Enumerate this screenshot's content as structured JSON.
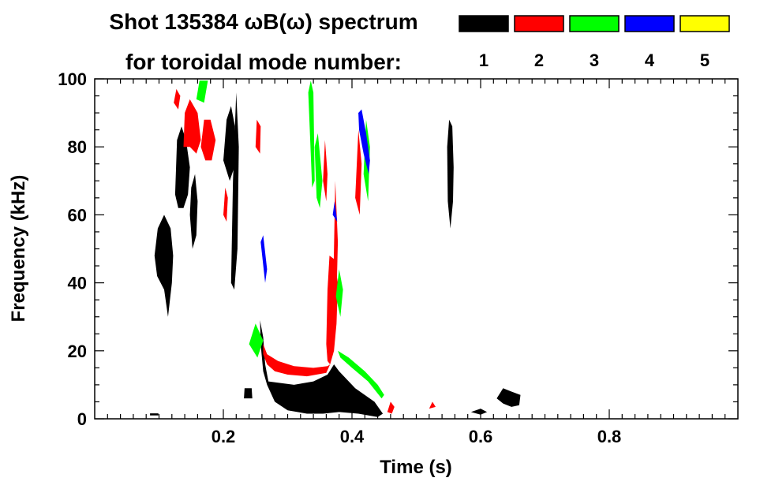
{
  "chart_data": {
    "type": "heatmap",
    "title_line1": "Shot 135384 ωB(ω) spectrum",
    "title_line2": "for toroidal mode number:",
    "xlabel": "Time (s)",
    "ylabel": "Frequency (kHz)",
    "xlim": [
      0.0,
      1.0
    ],
    "ylim": [
      0,
      100
    ],
    "x_ticks": [
      {
        "value": 0.2,
        "label": "0.2"
      },
      {
        "value": 0.4,
        "label": "0.4"
      },
      {
        "value": 0.6,
        "label": "0.6"
      },
      {
        "value": 0.8,
        "label": "0.8"
      }
    ],
    "y_ticks": [
      {
        "value": 0,
        "label": "0"
      },
      {
        "value": 20,
        "label": "20"
      },
      {
        "value": 40,
        "label": "40"
      },
      {
        "value": 60,
        "label": "60"
      },
      {
        "value": 80,
        "label": "80"
      },
      {
        "value": 100,
        "label": "100"
      }
    ],
    "legend": [
      {
        "label": "1",
        "color": "#000000"
      },
      {
        "label": "2",
        "color": "#ff0000"
      },
      {
        "label": "3",
        "color": "#00ff00"
      },
      {
        "label": "4",
        "color": "#0000ff"
      },
      {
        "label": "5",
        "color": "#ffff00"
      }
    ],
    "legend_position": "top-right",
    "regions": [
      {
        "n": "1",
        "points": [
          [
            0.093,
            48
          ],
          [
            0.098,
            56
          ],
          [
            0.108,
            60
          ],
          [
            0.118,
            56
          ],
          [
            0.122,
            48
          ],
          [
            0.12,
            40
          ],
          [
            0.114,
            30
          ],
          [
            0.108,
            38
          ],
          [
            0.097,
            42
          ]
        ]
      },
      {
        "n": "1",
        "points": [
          [
            0.125,
            66
          ],
          [
            0.128,
            82
          ],
          [
            0.135,
            86
          ],
          [
            0.142,
            82
          ],
          [
            0.148,
            74
          ],
          [
            0.145,
            66
          ],
          [
            0.138,
            62
          ],
          [
            0.13,
            62
          ]
        ]
      },
      {
        "n": "1",
        "points": [
          [
            0.148,
            60
          ],
          [
            0.15,
            68
          ],
          [
            0.156,
            72
          ],
          [
            0.16,
            64
          ],
          [
            0.158,
            54
          ],
          [
            0.152,
            50
          ]
        ]
      },
      {
        "n": "1",
        "points": [
          [
            0.2,
            76
          ],
          [
            0.205,
            88
          ],
          [
            0.212,
            92
          ],
          [
            0.218,
            86
          ],
          [
            0.217,
            74
          ],
          [
            0.21,
            70
          ]
        ]
      },
      {
        "n": "1",
        "points": [
          [
            0.212,
            40
          ],
          [
            0.215,
            70
          ],
          [
            0.22,
            96
          ],
          [
            0.224,
            80
          ],
          [
            0.222,
            50
          ],
          [
            0.217,
            38
          ]
        ]
      },
      {
        "n": "1",
        "points": [
          [
            0.086,
            1
          ],
          [
            0.086,
            1.6
          ],
          [
            0.099,
            1.6
          ],
          [
            0.099,
            1
          ]
        ]
      },
      {
        "n": "1",
        "points": [
          [
            0.232,
            6
          ],
          [
            0.233,
            9
          ],
          [
            0.244,
            9
          ],
          [
            0.245,
            6
          ]
        ]
      },
      {
        "n": "1",
        "points": [
          [
            0.27,
            11
          ],
          [
            0.31,
            10
          ],
          [
            0.34,
            11
          ],
          [
            0.362,
            13
          ],
          [
            0.372,
            16
          ],
          [
            0.38,
            14
          ],
          [
            0.405,
            9
          ],
          [
            0.435,
            5
          ],
          [
            0.448,
            1.5
          ],
          [
            0.44,
            0.5
          ],
          [
            0.41,
            1.5
          ],
          [
            0.38,
            2
          ],
          [
            0.355,
            1.5
          ],
          [
            0.33,
            1.5
          ],
          [
            0.3,
            2.5
          ],
          [
            0.28,
            5
          ],
          [
            0.268,
            10
          ],
          [
            0.262,
            14
          ],
          [
            0.258,
            22
          ],
          [
            0.257,
            29
          ],
          [
            0.262,
            24
          ],
          [
            0.265,
            16
          ]
        ]
      },
      {
        "n": "1",
        "points": [
          [
            0.548,
            80
          ],
          [
            0.551,
            88
          ],
          [
            0.556,
            86
          ],
          [
            0.558,
            74
          ],
          [
            0.557,
            64
          ],
          [
            0.553,
            56
          ],
          [
            0.549,
            64
          ]
        ]
      },
      {
        "n": "1",
        "points": [
          [
            0.625,
            6
          ],
          [
            0.635,
            9
          ],
          [
            0.648,
            8
          ],
          [
            0.662,
            7
          ],
          [
            0.66,
            4
          ],
          [
            0.648,
            3.5
          ],
          [
            0.635,
            4.5
          ]
        ]
      },
      {
        "n": "1",
        "points": [
          [
            0.585,
            2
          ],
          [
            0.6,
            3
          ],
          [
            0.61,
            2
          ],
          [
            0.6,
            1.2
          ]
        ]
      },
      {
        "n": "2",
        "points": [
          [
            0.138,
            80
          ],
          [
            0.14,
            90
          ],
          [
            0.148,
            94
          ],
          [
            0.16,
            90
          ],
          [
            0.165,
            82
          ],
          [
            0.158,
            78
          ],
          [
            0.148,
            80
          ]
        ]
      },
      {
        "n": "2",
        "points": [
          [
            0.165,
            80
          ],
          [
            0.17,
            88
          ],
          [
            0.18,
            88
          ],
          [
            0.188,
            82
          ],
          [
            0.182,
            76
          ],
          [
            0.172,
            76
          ]
        ]
      },
      {
        "n": "2",
        "points": [
          [
            0.123,
            93
          ],
          [
            0.127,
            97
          ],
          [
            0.133,
            95
          ],
          [
            0.13,
            91
          ]
        ]
      },
      {
        "n": "2",
        "points": [
          [
            0.2,
            60
          ],
          [
            0.203,
            68
          ],
          [
            0.207,
            65
          ],
          [
            0.205,
            58
          ]
        ]
      },
      {
        "n": "2",
        "points": [
          [
            0.25,
            80
          ],
          [
            0.252,
            88
          ],
          [
            0.258,
            86
          ],
          [
            0.257,
            78
          ]
        ]
      },
      {
        "n": "2",
        "points": [
          [
            0.262,
            22
          ],
          [
            0.268,
            19
          ],
          [
            0.285,
            17
          ],
          [
            0.31,
            15.5
          ],
          [
            0.34,
            15
          ],
          [
            0.362,
            15.5
          ],
          [
            0.366,
            16
          ],
          [
            0.36,
            13.5
          ],
          [
            0.33,
            12.5
          ],
          [
            0.3,
            13
          ],
          [
            0.28,
            14
          ],
          [
            0.268,
            16
          ],
          [
            0.262,
            19
          ]
        ]
      },
      {
        "n": "2",
        "points": [
          [
            0.36,
            22
          ],
          [
            0.362,
            38
          ],
          [
            0.365,
            48
          ],
          [
            0.372,
            47
          ],
          [
            0.378,
            40
          ],
          [
            0.376,
            28
          ],
          [
            0.372,
            20
          ],
          [
            0.366,
            16
          ],
          [
            0.362,
            17
          ]
        ]
      },
      {
        "n": "2",
        "points": [
          [
            0.355,
            70
          ],
          [
            0.358,
            82
          ],
          [
            0.362,
            72
          ],
          [
            0.36,
            64
          ]
        ]
      },
      {
        "n": "2",
        "points": [
          [
            0.37,
            30
          ],
          [
            0.374,
            70
          ],
          [
            0.378,
            52
          ],
          [
            0.376,
            36
          ]
        ]
      },
      {
        "n": "2",
        "points": [
          [
            0.405,
            65
          ],
          [
            0.41,
            85
          ],
          [
            0.415,
            75
          ],
          [
            0.412,
            60
          ]
        ]
      },
      {
        "n": "2",
        "points": [
          [
            0.455,
            2
          ],
          [
            0.46,
            5
          ],
          [
            0.466,
            3.5
          ],
          [
            0.462,
            1.5
          ]
        ]
      },
      {
        "n": "2",
        "points": [
          [
            0.52,
            3
          ],
          [
            0.525,
            5
          ],
          [
            0.53,
            3.5
          ]
        ]
      },
      {
        "n": "3",
        "points": [
          [
            0.158,
            94
          ],
          [
            0.163,
            99.5
          ],
          [
            0.176,
            99.5
          ],
          [
            0.17,
            93
          ]
        ]
      },
      {
        "n": "3",
        "points": [
          [
            0.24,
            22
          ],
          [
            0.25,
            28
          ],
          [
            0.262,
            23
          ],
          [
            0.253,
            18
          ]
        ]
      },
      {
        "n": "3",
        "points": [
          [
            0.332,
            96
          ],
          [
            0.336,
            99.5
          ],
          [
            0.34,
            96
          ],
          [
            0.342,
            70
          ],
          [
            0.338,
            68
          ]
        ]
      },
      {
        "n": "3",
        "points": [
          [
            0.342,
            80
          ],
          [
            0.347,
            84
          ],
          [
            0.354,
            70
          ],
          [
            0.35,
            62
          ],
          [
            0.345,
            65
          ]
        ]
      },
      {
        "n": "3",
        "points": [
          [
            0.375,
            36
          ],
          [
            0.38,
            44
          ],
          [
            0.386,
            38
          ],
          [
            0.382,
            30
          ]
        ]
      },
      {
        "n": "3",
        "points": [
          [
            0.378,
            20
          ],
          [
            0.395,
            18
          ],
          [
            0.42,
            14
          ],
          [
            0.44,
            10
          ],
          [
            0.45,
            7
          ],
          [
            0.446,
            6
          ],
          [
            0.425,
            11
          ],
          [
            0.4,
            15
          ],
          [
            0.382,
            18
          ]
        ]
      },
      {
        "n": "3",
        "points": [
          [
            0.418,
            72
          ],
          [
            0.422,
            88
          ],
          [
            0.428,
            80
          ],
          [
            0.425,
            64
          ]
        ]
      },
      {
        "n": "4",
        "points": [
          [
            0.41,
            90
          ],
          [
            0.415,
            91
          ],
          [
            0.422,
            84
          ],
          [
            0.428,
            76
          ],
          [
            0.426,
            72
          ],
          [
            0.418,
            78
          ],
          [
            0.411,
            85
          ]
        ]
      },
      {
        "n": "4",
        "points": [
          [
            0.258,
            52
          ],
          [
            0.262,
            54
          ],
          [
            0.268,
            44
          ],
          [
            0.265,
            40
          ]
        ]
      },
      {
        "n": "4",
        "points": [
          [
            0.37,
            60
          ],
          [
            0.373,
            64
          ],
          [
            0.377,
            58
          ]
        ]
      }
    ]
  }
}
